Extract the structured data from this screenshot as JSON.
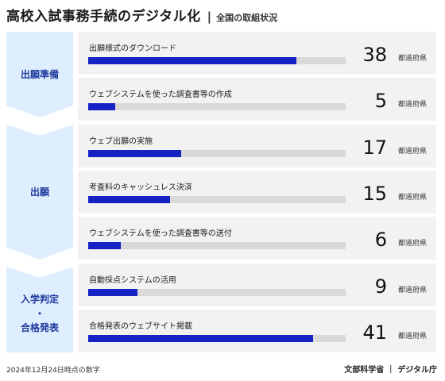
{
  "header": {
    "title": "高校入試事務手続のデジタル化",
    "separator": "|",
    "subtitle": "全国の取組状況"
  },
  "categories": [
    {
      "lines": [
        "出願準備"
      ]
    },
    {
      "lines": [
        "出願"
      ]
    },
    {
      "lines": [
        "入学判定",
        "・",
        "合格発表"
      ]
    }
  ],
  "unit": "都道府県",
  "total": 47,
  "items": [
    {
      "label": "出願様式のダウンロード",
      "count": "38",
      "value": 38
    },
    {
      "label": "ウェブシステムを使った調査書等の作成",
      "count": "5",
      "value": 5
    },
    {
      "label": "ウェブ出願の実施",
      "count": "17",
      "value": 17
    },
    {
      "label": "考査料のキャッシュレス決済",
      "count": "15",
      "value": 15
    },
    {
      "label": "ウェブシステムを使った調査書等の送付",
      "count": "6",
      "value": 6
    },
    {
      "label": "自動採点システムの活用",
      "count": "9",
      "value": 9
    },
    {
      "label": "合格発表のウェブサイト掲載",
      "count": "41",
      "value": 41
    }
  ],
  "footer": {
    "date": "2024年12月24日時点の数字",
    "org": "文部科学省 ｜ デジタル庁"
  },
  "colors": {
    "bar": "#1522c4",
    "track": "#d9d9d9",
    "chevron": "#dfeeff",
    "row_bg": "#f2f2f2",
    "accent_text": "#1e3a9e"
  }
}
